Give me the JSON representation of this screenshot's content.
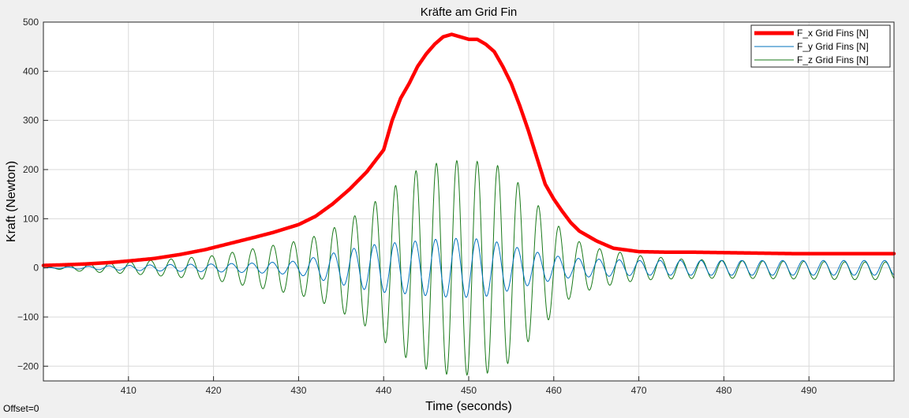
{
  "chart_data": {
    "type": "line",
    "title": "Kräfte am Grid Fin",
    "xlabel": "Time (seconds)",
    "ylabel": "Kraft (Newton)",
    "xlim": [
      400,
      500
    ],
    "ylim": [
      -230,
      500
    ],
    "xticks": [
      410,
      420,
      430,
      440,
      450,
      460,
      470,
      480,
      490
    ],
    "yticks": [
      -200,
      -100,
      0,
      100,
      200,
      300,
      400,
      500
    ],
    "grid": true,
    "legend_position": "top-right",
    "series": [
      {
        "name": "F_x Grid Fins [N]",
        "color": "#ff0000",
        "x": [
          400,
          402,
          405,
          408,
          410,
          413,
          416,
          419,
          422,
          425,
          427,
          430,
          432,
          434,
          436,
          438,
          440,
          441,
          442,
          443,
          444,
          445,
          446,
          447,
          448,
          449,
          450,
          451,
          452,
          453,
          454,
          455,
          456,
          457,
          458,
          459,
          460,
          461,
          462,
          463,
          465,
          467,
          470,
          473,
          476,
          480,
          484,
          488,
          492,
          496,
          500
        ],
        "y": [
          5,
          6,
          8,
          11,
          14,
          19,
          27,
          37,
          50,
          63,
          72,
          88,
          105,
          130,
          160,
          195,
          240,
          300,
          345,
          375,
          410,
          435,
          455,
          470,
          475,
          470,
          465,
          465,
          455,
          440,
          410,
          375,
          330,
          280,
          225,
          170,
          140,
          115,
          92,
          75,
          55,
          40,
          33,
          32,
          32,
          31,
          30,
          29,
          29,
          29,
          29
        ]
      },
      {
        "name": "F_y Grid Fins [N]",
        "color": "#0072bd",
        "x": [
          400,
          405,
          410,
          415,
          420,
          425,
          430,
          432,
          434,
          436,
          438,
          440,
          442,
          444,
          446,
          448,
          450,
          452,
          454,
          456,
          458,
          460,
          462,
          465,
          470,
          475,
          480,
          485,
          490,
          495,
          500
        ],
        "amplitude": [
          0,
          3,
          5,
          7,
          8,
          10,
          14,
          22,
          30,
          38,
          45,
          50,
          52,
          55,
          58,
          60,
          60,
          58,
          50,
          40,
          32,
          25,
          20,
          18,
          15,
          15,
          15,
          15,
          15,
          15,
          15
        ],
        "center": 0,
        "period_s": 2.4
      },
      {
        "name": "F_z Grid Fins [N]",
        "color": "#1a7a1a",
        "x": [
          400,
          405,
          410,
          415,
          420,
          425,
          430,
          432,
          434,
          436,
          438,
          440,
          442,
          444,
          446,
          448,
          450,
          452,
          454,
          456,
          458,
          460,
          462,
          465,
          470,
          475,
          480,
          485,
          490,
          495,
          500
        ],
        "amplitude": [
          0,
          8,
          12,
          18,
          25,
          40,
          55,
          65,
          80,
          100,
          120,
          150,
          175,
          200,
          212,
          218,
          218,
          215,
          205,
          170,
          130,
          95,
          60,
          40,
          25,
          20,
          18,
          18,
          18,
          18,
          18
        ],
        "center": [
          0,
          0,
          0,
          0,
          0,
          0,
          0,
          0,
          0,
          0,
          0,
          0,
          0,
          0,
          0,
          0,
          0,
          0,
          0,
          0,
          0,
          0,
          0,
          0,
          0,
          -2,
          -3,
          -4,
          -5,
          -6,
          -6
        ],
        "period_s": 2.4
      }
    ],
    "annotation": "Offset=0"
  }
}
